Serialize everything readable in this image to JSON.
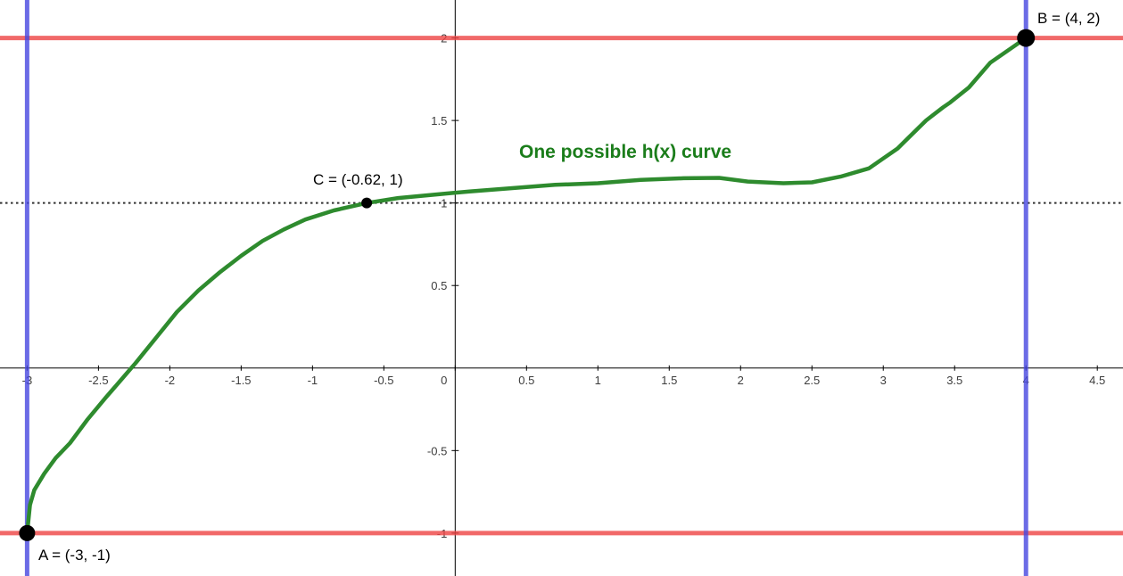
{
  "chart_data": {
    "type": "line",
    "title": "One possible h(x) curve",
    "title_color": "#1b7d1b",
    "background": "#ffffff",
    "axis": {
      "xmin": -3.19,
      "xmax": 4.68,
      "ymin": -1.26,
      "ymax": 2.23,
      "color": "#000000",
      "tick_label_color": "#3d3d3d",
      "grid": false,
      "xticks": [
        -3,
        -2.5,
        -2,
        -1.5,
        -1,
        -0.5,
        0,
        0.5,
        1,
        1.5,
        2,
        2.5,
        3,
        3.5,
        4,
        4.5
      ],
      "yticks": [
        2,
        1.5,
        1,
        0.5,
        -0.5,
        -1
      ]
    },
    "reference_lines": [
      {
        "id": "horizontal-line-y-2",
        "orientation": "horizontal",
        "value": 2,
        "style": "solid",
        "color": "#ee4444",
        "width": 5,
        "opacity": 0.8
      },
      {
        "id": "horizontal-line-y-minus-1",
        "orientation": "horizontal",
        "value": -1,
        "style": "solid",
        "color": "#ee4444",
        "width": 5,
        "opacity": 0.8
      },
      {
        "id": "dotted-line-y-1",
        "orientation": "horizontal",
        "value": 1,
        "style": "dotted",
        "color": "#1a1a1a",
        "width": 2,
        "opacity": 0.9
      },
      {
        "id": "vertical-line-x-minus-3",
        "orientation": "vertical",
        "value": -3,
        "style": "solid",
        "color": "#4747e0",
        "width": 5,
        "opacity": 0.8
      },
      {
        "id": "vertical-line-x-4",
        "orientation": "vertical",
        "value": 4,
        "style": "solid",
        "color": "#4747e0",
        "width": 5,
        "opacity": 0.8
      }
    ],
    "points": [
      {
        "name": "A",
        "label": "A = (-3, -1)",
        "x": -3,
        "y": -1,
        "radius": 9,
        "color": "#000000"
      },
      {
        "name": "B",
        "label": "B = (4, 2)",
        "x": 4,
        "y": 2,
        "radius": 10,
        "color": "#000000"
      },
      {
        "name": "C",
        "label": "C = (-0.62, 1)",
        "x": -0.62,
        "y": 1,
        "radius": 6,
        "color": "#000000"
      }
    ],
    "series": [
      {
        "name": "h-curve",
        "color": "#2e8b2e",
        "width": 4.5,
        "points": [
          [
            -3,
            -1
          ],
          [
            -2.98,
            -0.83
          ],
          [
            -2.95,
            -0.74
          ],
          [
            -2.88,
            -0.64
          ],
          [
            -2.8,
            -0.545
          ],
          [
            -2.7,
            -0.455
          ],
          [
            -2.58,
            -0.315
          ],
          [
            -2.45,
            -0.18
          ],
          [
            -2.33,
            -0.06
          ],
          [
            -2.24,
            0.03
          ],
          [
            -2.1,
            0.18
          ],
          [
            -1.95,
            0.34
          ],
          [
            -1.8,
            0.47
          ],
          [
            -1.65,
            0.58
          ],
          [
            -1.5,
            0.68
          ],
          [
            -1.35,
            0.77
          ],
          [
            -1.2,
            0.84
          ],
          [
            -1.05,
            0.9
          ],
          [
            -0.85,
            0.955
          ],
          [
            -0.62,
            1.0
          ],
          [
            -0.4,
            1.03
          ],
          [
            -0.15,
            1.05
          ],
          [
            0.1,
            1.07
          ],
          [
            0.4,
            1.09
          ],
          [
            0.7,
            1.11
          ],
          [
            1.0,
            1.12
          ],
          [
            1.3,
            1.14
          ],
          [
            1.6,
            1.15
          ],
          [
            1.85,
            1.152
          ],
          [
            2.05,
            1.13
          ],
          [
            2.3,
            1.12
          ],
          [
            2.5,
            1.125
          ],
          [
            2.7,
            1.16
          ],
          [
            2.9,
            1.21
          ],
          [
            3.0,
            1.27
          ],
          [
            3.1,
            1.33
          ],
          [
            3.3,
            1.5
          ],
          [
            3.42,
            1.58
          ],
          [
            3.47,
            1.61
          ],
          [
            3.6,
            1.7
          ],
          [
            3.75,
            1.85
          ],
          [
            3.9,
            1.94
          ],
          [
            4,
            2
          ]
        ]
      }
    ]
  }
}
